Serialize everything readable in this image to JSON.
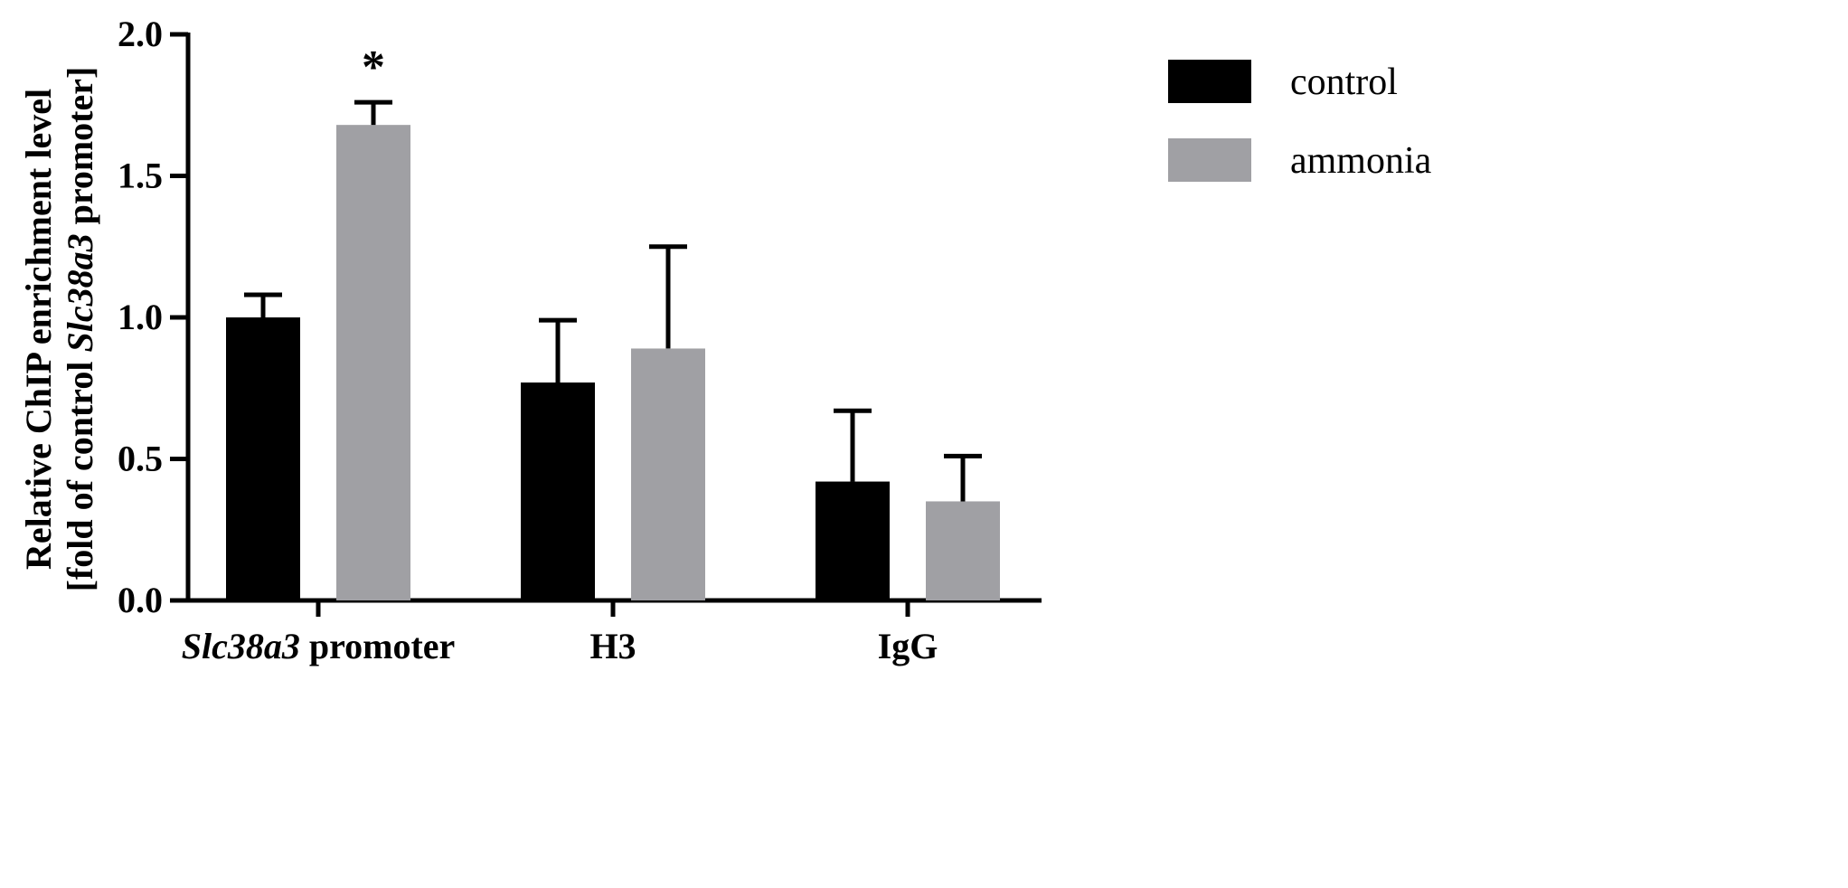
{
  "chart_data": {
    "type": "bar",
    "categories": [
      "Slc38a3 promoter",
      "H3",
      "IgG"
    ],
    "category_labels": [
      {
        "italic": "Slc38a3",
        "plain": " promoter"
      },
      {
        "italic": "",
        "plain": "H3"
      },
      {
        "italic": "",
        "plain": "IgG"
      }
    ],
    "series": [
      {
        "name": "control",
        "color": "#000000",
        "values": [
          1.0,
          0.77,
          0.42
        ],
        "errors": [
          0.08,
          0.22,
          0.25
        ]
      },
      {
        "name": "ammonia",
        "color": "#a0a0a4",
        "values": [
          1.68,
          0.89,
          0.35
        ],
        "errors": [
          0.08,
          0.36,
          0.16
        ]
      }
    ],
    "ylabel_line1": "Relative ChIP enrichment level",
    "ylabel_line2_parts": [
      {
        "text": "[fold of control ",
        "italic": false
      },
      {
        "text": "Slc38a3",
        "italic": true
      },
      {
        "text": " promoter]",
        "italic": false
      }
    ],
    "ylim": [
      0,
      2.0
    ],
    "yticks": [
      "0.0",
      "0.5",
      "1.0",
      "1.5",
      "2.0"
    ],
    "annotations": [
      {
        "category": "Slc38a3 promoter",
        "series": "ammonia",
        "text": "*"
      }
    ],
    "legend_position": "top-right",
    "grid": false
  }
}
